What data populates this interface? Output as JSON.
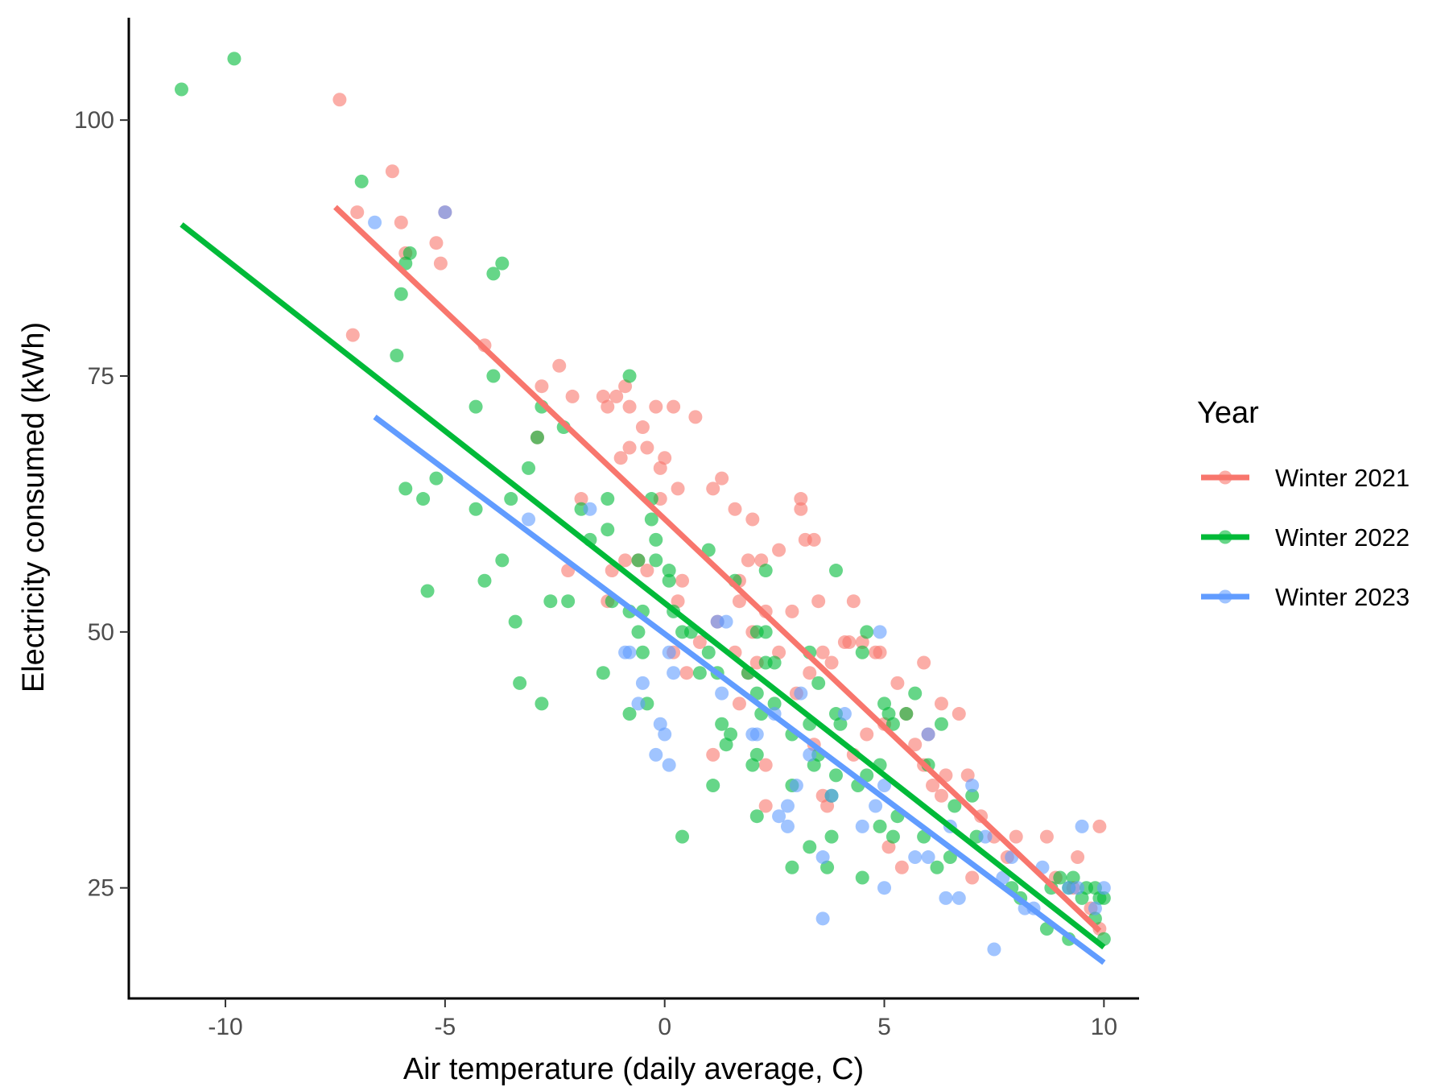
{
  "chart_data": {
    "type": "scatter",
    "title": "",
    "xlabel": "Air temperature (daily average, C)",
    "ylabel": "Electricity consumed (kWh)",
    "xlim": [
      -12.2,
      10.8
    ],
    "ylim": [
      14.2,
      110
    ],
    "x_ticks": [
      -10,
      -5,
      0,
      5,
      10
    ],
    "x_tick_labels": [
      "-10",
      "-5",
      "0",
      "5",
      "10"
    ],
    "y_ticks": [
      25,
      50,
      75,
      100
    ],
    "y_tick_labels": [
      "25",
      "50",
      "75",
      "100"
    ],
    "grid": false,
    "legend": {
      "title": "Year",
      "position": "right"
    },
    "series": [
      {
        "name": "Winter 2021",
        "color": "#F8766D",
        "fit_line": {
          "x": [
            -7.5,
            9.9
          ],
          "y": [
            91.5,
            20.8
          ]
        },
        "points": [
          [
            -7.4,
            102
          ],
          [
            -6.2,
            95
          ],
          [
            -7.0,
            91
          ],
          [
            -6.0,
            90
          ],
          [
            -5.0,
            91
          ],
          [
            -5.2,
            88
          ],
          [
            -5.9,
            87
          ],
          [
            -5.1,
            86
          ],
          [
            -7.1,
            79
          ],
          [
            -4.1,
            78
          ],
          [
            -2.4,
            76
          ],
          [
            -2.8,
            74
          ],
          [
            -2.1,
            73
          ],
          [
            -1.4,
            73
          ],
          [
            -1.1,
            73
          ],
          [
            -0.9,
            74
          ],
          [
            -0.8,
            72
          ],
          [
            -1.3,
            72
          ],
          [
            -0.2,
            72
          ],
          [
            0.2,
            72
          ],
          [
            0.7,
            71
          ],
          [
            -0.5,
            70
          ],
          [
            -2.9,
            69
          ],
          [
            -0.4,
            68
          ],
          [
            -0.8,
            68
          ],
          [
            -1.0,
            67
          ],
          [
            0.0,
            67
          ],
          [
            -0.1,
            66
          ],
          [
            0.3,
            64
          ],
          [
            1.1,
            64
          ],
          [
            1.3,
            65
          ],
          [
            -1.9,
            63
          ],
          [
            -0.1,
            63
          ],
          [
            3.1,
            63
          ],
          [
            3.1,
            62
          ],
          [
            1.6,
            62
          ],
          [
            2.0,
            61
          ],
          [
            3.2,
            59
          ],
          [
            3.4,
            59
          ],
          [
            -0.6,
            57
          ],
          [
            -0.9,
            57
          ],
          [
            1.9,
            57
          ],
          [
            2.2,
            57
          ],
          [
            2.6,
            58
          ],
          [
            -2.2,
            56
          ],
          [
            -0.4,
            56
          ],
          [
            -1.2,
            56
          ],
          [
            0.4,
            55
          ],
          [
            1.7,
            55
          ],
          [
            -1.3,
            53
          ],
          [
            0.3,
            53
          ],
          [
            1.7,
            53
          ],
          [
            3.5,
            53
          ],
          [
            4.3,
            53
          ],
          [
            2.9,
            52
          ],
          [
            2.3,
            52
          ],
          [
            1.2,
            51
          ],
          [
            2.0,
            50
          ],
          [
            2.6,
            48
          ],
          [
            3.6,
            48
          ],
          [
            0.2,
            48
          ],
          [
            0.8,
            49
          ],
          [
            1.6,
            48
          ],
          [
            2.1,
            47
          ],
          [
            3.8,
            47
          ],
          [
            4.1,
            49
          ],
          [
            4.5,
            49
          ],
          [
            4.8,
            48
          ],
          [
            5.9,
            47
          ],
          [
            4.2,
            49
          ],
          [
            0.5,
            46
          ],
          [
            1.9,
            46
          ],
          [
            3.3,
            46
          ],
          [
            5.3,
            45
          ],
          [
            1.7,
            43
          ],
          [
            3.0,
            44
          ],
          [
            4.6,
            40
          ],
          [
            5.5,
            42
          ],
          [
            6.3,
            43
          ],
          [
            6.7,
            42
          ],
          [
            4.3,
            38
          ],
          [
            5.0,
            41
          ],
          [
            2.3,
            37
          ],
          [
            3.4,
            39
          ],
          [
            6.0,
            40
          ],
          [
            5.9,
            37
          ],
          [
            5.7,
            39
          ],
          [
            6.4,
            36
          ],
          [
            6.1,
            35
          ],
          [
            6.3,
            34
          ],
          [
            6.9,
            36
          ],
          [
            7.2,
            32
          ],
          [
            7.5,
            30
          ],
          [
            8.0,
            30
          ],
          [
            7.8,
            28
          ],
          [
            8.7,
            30
          ],
          [
            9.4,
            28
          ],
          [
            9.9,
            31
          ],
          [
            3.6,
            34
          ],
          [
            3.7,
            33
          ],
          [
            2.3,
            33
          ],
          [
            5.1,
            29
          ],
          [
            5.4,
            27
          ],
          [
            7.0,
            26
          ],
          [
            8.9,
            26
          ],
          [
            9.3,
            25
          ],
          [
            9.7,
            23
          ],
          [
            9.9,
            21
          ],
          [
            1.1,
            38
          ],
          [
            4.9,
            48
          ]
        ]
      },
      {
        "name": "Winter 2022",
        "color": "#00BA38",
        "fit_line": {
          "x": [
            -11.0,
            10.0
          ],
          "y": [
            89.8,
            19.2
          ]
        },
        "points": [
          [
            -11.0,
            103
          ],
          [
            -9.8,
            106
          ],
          [
            -6.9,
            94
          ],
          [
            -5.8,
            87
          ],
          [
            -5.9,
            86
          ],
          [
            -3.9,
            85
          ],
          [
            -3.7,
            86
          ],
          [
            -6.0,
            83
          ],
          [
            -6.1,
            77
          ],
          [
            -3.9,
            75
          ],
          [
            -4.3,
            72
          ],
          [
            -2.8,
            72
          ],
          [
            -2.3,
            70
          ],
          [
            -0.8,
            75
          ],
          [
            -2.9,
            69
          ],
          [
            -3.1,
            66
          ],
          [
            -5.9,
            64
          ],
          [
            -5.2,
            65
          ],
          [
            -5.5,
            63
          ],
          [
            -3.5,
            63
          ],
          [
            -4.3,
            62
          ],
          [
            -1.9,
            62
          ],
          [
            -1.3,
            63
          ],
          [
            -0.3,
            63
          ],
          [
            -0.3,
            61
          ],
          [
            -1.3,
            60
          ],
          [
            -0.2,
            59
          ],
          [
            -1.7,
            59
          ],
          [
            1.0,
            58
          ],
          [
            -0.6,
            57
          ],
          [
            -0.2,
            57
          ],
          [
            -3.7,
            57
          ],
          [
            -4.1,
            55
          ],
          [
            -5.4,
            54
          ],
          [
            -3.4,
            51
          ],
          [
            -2.6,
            53
          ],
          [
            -2.2,
            53
          ],
          [
            -1.2,
            53
          ],
          [
            0.1,
            56
          ],
          [
            0.1,
            55
          ],
          [
            1.6,
            55
          ],
          [
            2.3,
            56
          ],
          [
            3.9,
            56
          ],
          [
            -0.8,
            52
          ],
          [
            -0.5,
            52
          ],
          [
            -0.6,
            50
          ],
          [
            0.2,
            52
          ],
          [
            0.4,
            50
          ],
          [
            0.6,
            50
          ],
          [
            2.1,
            50
          ],
          [
            2.3,
            50
          ],
          [
            2.5,
            47
          ],
          [
            2.3,
            47
          ],
          [
            3.3,
            48
          ],
          [
            4.5,
            48
          ],
          [
            4.6,
            50
          ],
          [
            -3.3,
            45
          ],
          [
            -2.8,
            43
          ],
          [
            -1.4,
            46
          ],
          [
            -0.5,
            48
          ],
          [
            -0.4,
            43
          ],
          [
            -0.8,
            42
          ],
          [
            0.8,
            46
          ],
          [
            1.0,
            48
          ],
          [
            1.2,
            46
          ],
          [
            1.9,
            46
          ],
          [
            2.1,
            44
          ],
          [
            2.5,
            43
          ],
          [
            2.2,
            42
          ],
          [
            3.3,
            41
          ],
          [
            3.5,
            45
          ],
          [
            3.9,
            42
          ],
          [
            4.0,
            41
          ],
          [
            4.6,
            36
          ],
          [
            4.9,
            37
          ],
          [
            5.0,
            43
          ],
          [
            5.1,
            42
          ],
          [
            5.2,
            41
          ],
          [
            5.5,
            42
          ],
          [
            5.7,
            44
          ],
          [
            6.3,
            41
          ],
          [
            6.0,
            37
          ],
          [
            1.3,
            41
          ],
          [
            1.5,
            40
          ],
          [
            1.4,
            39
          ],
          [
            2.1,
            38
          ],
          [
            2.0,
            37
          ],
          [
            2.9,
            40
          ],
          [
            3.5,
            38
          ],
          [
            3.4,
            37
          ],
          [
            3.9,
            36
          ],
          [
            4.4,
            35
          ],
          [
            1.1,
            35
          ],
          [
            3.8,
            34
          ],
          [
            2.9,
            35
          ],
          [
            5.3,
            32
          ],
          [
            5.2,
            30
          ],
          [
            4.9,
            31
          ],
          [
            5.9,
            30
          ],
          [
            6.6,
            33
          ],
          [
            7.0,
            34
          ],
          [
            7.1,
            30
          ],
          [
            6.5,
            28
          ],
          [
            6.2,
            27
          ],
          [
            3.3,
            29
          ],
          [
            3.8,
            30
          ],
          [
            2.9,
            27
          ],
          [
            3.7,
            27
          ],
          [
            4.5,
            26
          ],
          [
            0.4,
            30
          ],
          [
            7.9,
            25
          ],
          [
            8.1,
            24
          ],
          [
            8.7,
            21
          ],
          [
            8.8,
            25
          ],
          [
            9.0,
            26
          ],
          [
            9.2,
            25
          ],
          [
            9.3,
            26
          ],
          [
            9.5,
            24
          ],
          [
            9.6,
            25
          ],
          [
            9.8,
            25
          ],
          [
            9.9,
            24
          ],
          [
            10.0,
            24
          ],
          [
            9.8,
            22
          ],
          [
            9.2,
            20
          ],
          [
            10.0,
            20
          ],
          [
            2.1,
            32
          ]
        ]
      },
      {
        "name": "Winter 2023",
        "color": "#619CFF",
        "fit_line": {
          "x": [
            -6.6,
            10.0
          ],
          "y": [
            71.0,
            17.7
          ]
        },
        "points": [
          [
            -6.6,
            90
          ],
          [
            -5.0,
            91
          ],
          [
            -3.1,
            61
          ],
          [
            -1.7,
            62
          ],
          [
            -0.9,
            48
          ],
          [
            -0.8,
            48
          ],
          [
            -0.5,
            45
          ],
          [
            -0.6,
            43
          ],
          [
            -0.1,
            41
          ],
          [
            0.0,
            40
          ],
          [
            0.1,
            37
          ],
          [
            0.2,
            46
          ],
          [
            0.1,
            48
          ],
          [
            1.2,
            51
          ],
          [
            1.4,
            51
          ],
          [
            1.3,
            44
          ],
          [
            2.0,
            40
          ],
          [
            2.1,
            40
          ],
          [
            2.5,
            42
          ],
          [
            2.8,
            33
          ],
          [
            2.8,
            31
          ],
          [
            2.6,
            32
          ],
          [
            3.0,
            35
          ],
          [
            3.3,
            38
          ],
          [
            3.1,
            44
          ],
          [
            3.6,
            28
          ],
          [
            3.6,
            22
          ],
          [
            3.8,
            34
          ],
          [
            4.1,
            42
          ],
          [
            4.5,
            31
          ],
          [
            4.8,
            33
          ],
          [
            4.9,
            50
          ],
          [
            5.0,
            25
          ],
          [
            5.0,
            35
          ],
          [
            5.7,
            28
          ],
          [
            6.0,
            28
          ],
          [
            6.0,
            40
          ],
          [
            6.4,
            24
          ],
          [
            6.5,
            31
          ],
          [
            6.7,
            24
          ],
          [
            7.0,
            35
          ],
          [
            7.3,
            30
          ],
          [
            7.5,
            19
          ],
          [
            7.7,
            26
          ],
          [
            7.9,
            28
          ],
          [
            8.2,
            23
          ],
          [
            8.4,
            23
          ],
          [
            8.6,
            27
          ],
          [
            9.2,
            25
          ],
          [
            9.4,
            25
          ],
          [
            9.5,
            31
          ],
          [
            9.8,
            23
          ],
          [
            10.0,
            25
          ],
          [
            -0.2,
            38
          ]
        ]
      }
    ]
  }
}
